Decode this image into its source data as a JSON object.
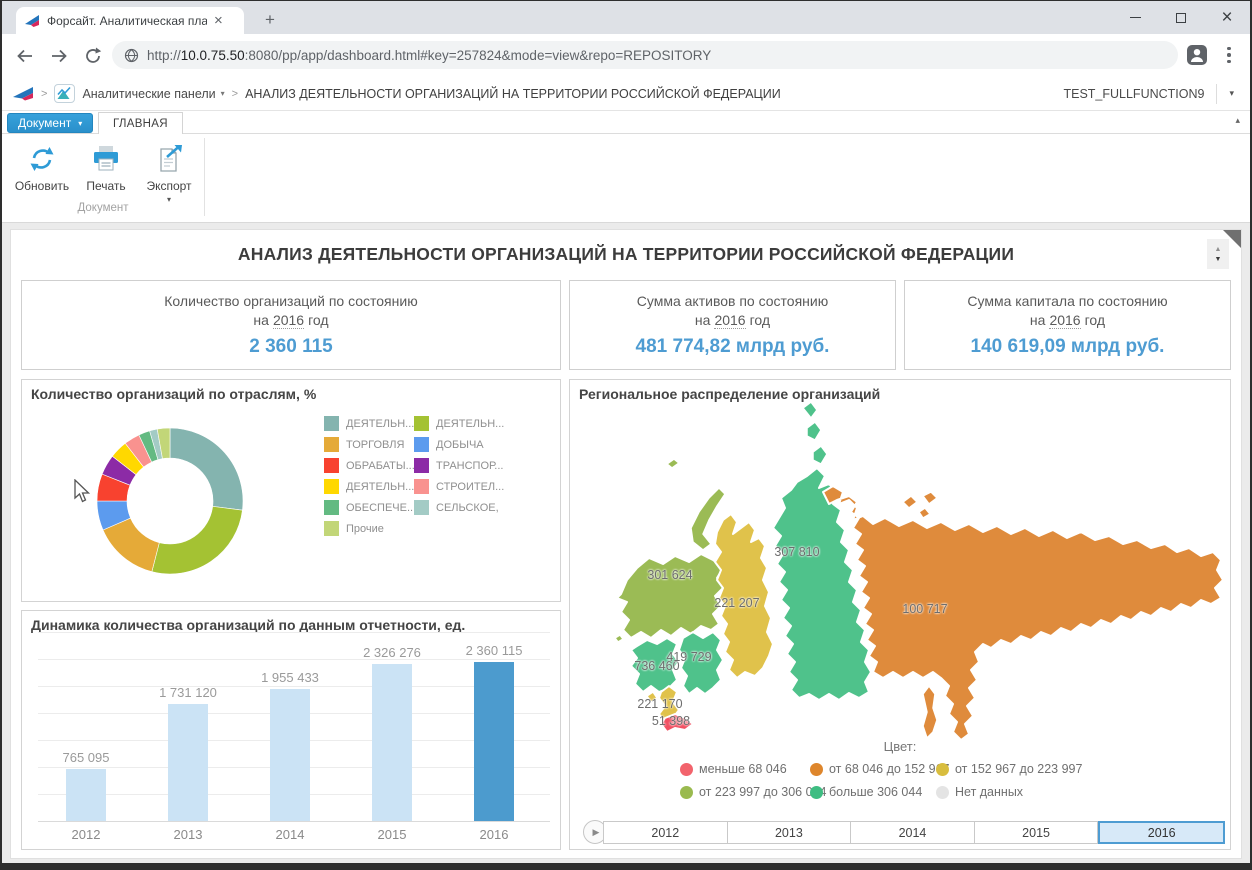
{
  "browser": {
    "tab_title": "Форсайт. Аналитическая платформа",
    "new_tab_label": "+",
    "url_prefix": "http://",
    "url_host": "10.0.75.50",
    "url_rest": ":8080/pp/app/dashboard.html#key=257824&mode=view&repo=REPOSITORY"
  },
  "breadcrumb": {
    "separator": ">",
    "app_menu_label": "Аналитические панели",
    "page_title": "АНАЛИЗ ДЕЯТЕЛЬНОСТИ ОРГАНИЗАЦИЙ НА ТЕРРИТОРИИ РОССИЙСКОЙ ФЕДЕРАЦИИ",
    "username": "TEST_FULLFUNCTION9"
  },
  "ribbon": {
    "document_menu_label": "Документ",
    "active_tab": "ГЛАВНАЯ",
    "buttons": [
      {
        "label": "Обновить"
      },
      {
        "label": "Печать"
      },
      {
        "label": "Экспорт"
      }
    ],
    "group_label": "Документ"
  },
  "dashboard": {
    "title": "АНАЛИЗ ДЕЯТЕЛЬНОСТИ ОРГАНИЗАЦИЙ НА ТЕРРИТОРИИ РОССИЙСКОЙ ФЕДЕРАЦИИ",
    "accent_color": "#4E9CD2",
    "kpis": [
      {
        "line1": "Количество организаций по состоянию",
        "line2_prefix": "на",
        "year": "2016",
        "line2_suffix": "год",
        "value": "2 360 115"
      },
      {
        "line1": "Сумма активов по состоянию",
        "line2_prefix": "на",
        "year": "2016",
        "line2_suffix": "год",
        "value": "481 774,82 млрд руб."
      },
      {
        "line1": "Сумма капитала по состоянию",
        "line2_prefix": "на",
        "year": "2016",
        "line2_suffix": "год",
        "value": "140 619,09 млрд руб."
      }
    ]
  },
  "chart_data": [
    {
      "type": "pie",
      "donut": true,
      "title": "Количество организаций по отраслям, %",
      "series": [
        {
          "label": "ДЕЯТЕЛЬН...",
          "value": 27,
          "color": "#84B4AF"
        },
        {
          "label": "ДЕЯТЕЛЬН...",
          "value": 27,
          "color": "#A4C233"
        },
        {
          "label": "ТОРГОВЛЯ",
          "value": 14.5,
          "color": "#E5AA38"
        },
        {
          "label": "ДОБЫЧА",
          "value": 6.5,
          "color": "#5C9BEE"
        },
        {
          "label": "ОБРАБАТЫ...",
          "value": 6,
          "color": "#F8422F"
        },
        {
          "label": "ТРАНСПОР...",
          "value": 4.5,
          "color": "#8C2BA6"
        },
        {
          "label": "ДЕЯТЕЛЬН...",
          "value": 4,
          "color": "#FFD800"
        },
        {
          "label": "СТРОИТЕЛ...",
          "value": 3.5,
          "color": "#F9928F"
        },
        {
          "label": "ОБЕСПЕЧЕ...",
          "value": 2.5,
          "color": "#63BA82"
        },
        {
          "label": "СЕЛЬСКОЕ,",
          "value": 1.7,
          "color": "#A3CBC5"
        },
        {
          "label": "Прочие",
          "value": 2.8,
          "color": "#C2D678"
        }
      ],
      "legend_col1": [
        {
          "label": "ДЕЯТЕЛЬН...",
          "color": "#84B4AF"
        },
        {
          "label": "ТОРГОВЛЯ",
          "color": "#E5AA38"
        },
        {
          "label": "ОБРАБАТЫ...",
          "color": "#F8422F"
        },
        {
          "label": "ДЕЯТЕЛЬН...",
          "color": "#FFD800"
        },
        {
          "label": "ОБЕСПЕЧЕ...",
          "color": "#63BA82"
        },
        {
          "label": "Прочие",
          "color": "#C2D678"
        }
      ],
      "legend_col2": [
        {
          "label": "ДЕЯТЕЛЬН...",
          "color": "#A4C233"
        },
        {
          "label": "ДОБЫЧА",
          "color": "#5C9BEE"
        },
        {
          "label": "ТРАНСПОР...",
          "color": "#8C2BA6"
        },
        {
          "label": "СТРОИТЕЛ...",
          "color": "#F9928F"
        },
        {
          "label": "СЕЛЬСКОЕ,",
          "color": "#A3CBC5"
        }
      ]
    },
    {
      "type": "bar",
      "title": "Динамика количества организаций по данным отчетности, ед.",
      "categories": [
        "2012",
        "2013",
        "2014",
        "2015",
        "2016"
      ],
      "values": [
        765095,
        1731120,
        1955433,
        2326276,
        2360115
      ],
      "labels": [
        "765 095",
        "1 731 120",
        "1 955 433",
        "2 326 276",
        "2 360 115"
      ],
      "bar_color": "#CBE3F5",
      "highlight_color": "#4C9BCE",
      "highlight_index": 4,
      "ylim": [
        0,
        2520000
      ],
      "grid": true
    },
    {
      "type": "choropleth",
      "title": "Региональное распределение организаций",
      "regions": [
        {
          "key": "northwest",
          "value": 301624,
          "value_label": "301 624",
          "color": "#9BBB55"
        },
        {
          "key": "urals",
          "value": 221207,
          "value_label": "221 207",
          "color": "#E0C24B"
        },
        {
          "key": "siberia",
          "value": 307810,
          "value_label": "307 810",
          "color": "#4FC28B"
        },
        {
          "key": "far-east",
          "value": 100717,
          "value_label": "100 717",
          "color": "#DF8B3C"
        },
        {
          "key": "central",
          "value": 736460,
          "value_label": "736 460",
          "color": "#4FC28B"
        },
        {
          "key": "volga",
          "value": 419729,
          "value_label": "419 729",
          "color": "#4FC28B"
        },
        {
          "key": "south",
          "value": 221170,
          "value_label": "221 170",
          "color": "#E0C24B"
        },
        {
          "key": "north-caucasus",
          "value": 51398,
          "value_label": "51 398",
          "color": "#F25062"
        }
      ],
      "legend_title": "Цвет:",
      "legend": [
        {
          "label": "меньше 68 046",
          "color": "#F2636C"
        },
        {
          "label": "от 68 046 до 152 967",
          "color": "#DE862C"
        },
        {
          "label": "от 152 967 до 223 997",
          "color": "#D8BD3E"
        },
        {
          "label": "от 223 997 до 306 044",
          "color": "#9ABA4F"
        },
        {
          "label": "больше 306 044",
          "color": "#3EBD82"
        },
        {
          "label": "Нет данных",
          "color": "#E4E4E4"
        }
      ],
      "years": [
        "2012",
        "2013",
        "2014",
        "2015",
        "2016"
      ],
      "selected_year": "2016",
      "play_button": "▶"
    }
  ]
}
